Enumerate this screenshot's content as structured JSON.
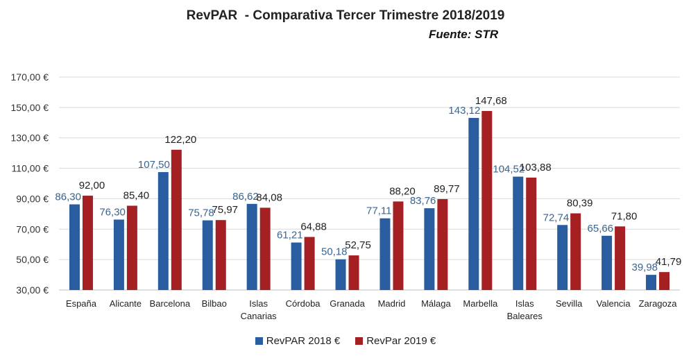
{
  "chart_data": {
    "type": "bar",
    "title": "RevPAR  - Comparativa Tercer Trimestre 2018/2019",
    "subtitle": "Fuente: STR",
    "categories": [
      "España",
      "Alicante",
      "Barcelona",
      "Bilbao",
      "Islas Canarias",
      "Córdoba",
      "Granada",
      "Madrid",
      "Málaga",
      "Marbella",
      "Islas Baleares",
      "Sevilla",
      "Valencia",
      "Zaragoza"
    ],
    "series": [
      {
        "name": "RevPAR 2018 €",
        "color": "#2a5d9f",
        "label_color": "#3a6590",
        "values": [
          86.3,
          76.3,
          107.5,
          75.78,
          86.62,
          61.21,
          50.18,
          77.11,
          83.76,
          143.12,
          104.52,
          72.74,
          65.66,
          39.98
        ],
        "labels": [
          "86,30",
          "76,30",
          "107,50",
          "75,78",
          "86,62",
          "61,21",
          "50,18",
          "77,11",
          "83,76",
          "143,12",
          "104,52",
          "72,74",
          "65,66",
          "39,98"
        ]
      },
      {
        "name": "RevPar 2019 €",
        "color": "#a52022",
        "label_color": "#222222",
        "values": [
          92.0,
          85.4,
          122.2,
          75.97,
          84.08,
          64.88,
          52.75,
          88.2,
          89.77,
          147.68,
          103.88,
          80.39,
          71.8,
          41.79
        ],
        "labels": [
          "92,00",
          "85,40",
          "122,20",
          "75,97",
          "84,08",
          "64,88",
          "52,75",
          "88,20",
          "89,77",
          "147,68",
          "103,88",
          "80,39",
          "71,80",
          "41,79"
        ]
      }
    ],
    "ylim": [
      30,
      170
    ],
    "yticks": [
      "30,00 €",
      "50,00 €",
      "70,00 €",
      "90,00 €",
      "110,00 €",
      "130,00 €",
      "150,00 €",
      "170,00 €"
    ],
    "xlabel": "",
    "ylabel": "",
    "grid": true,
    "legend": "bottom"
  }
}
